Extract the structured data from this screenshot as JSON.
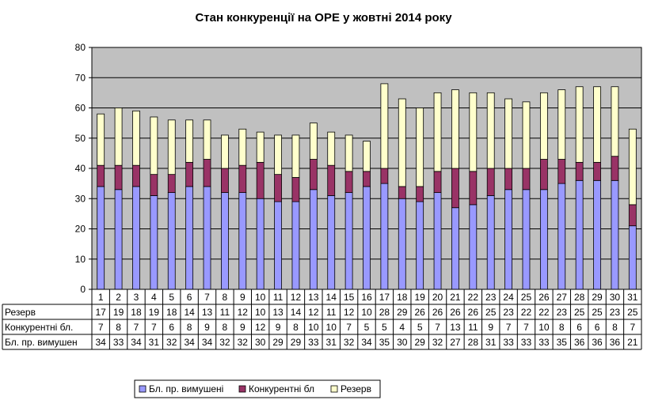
{
  "chart_data": {
    "type": "bar",
    "stacked": true,
    "title": "Стан конкуренції на ОРЕ  у жовтні 2014 року",
    "categories": [
      "1",
      "2",
      "3",
      "4",
      "5",
      "6",
      "7",
      "8",
      "9",
      "10",
      "11",
      "12",
      "13",
      "14",
      "15",
      "16",
      "17",
      "18",
      "19",
      "20",
      "21",
      "22",
      "23",
      "24",
      "25",
      "26",
      "27",
      "28",
      "29",
      "30",
      "31"
    ],
    "ylim": [
      0,
      80
    ],
    "yticks": [
      0,
      10,
      20,
      30,
      40,
      50,
      60,
      70,
      80
    ],
    "grid": true,
    "legend_position": "bottom",
    "series": [
      {
        "name": "Бл. пр. вимушені",
        "row_label": "Бл. пр. вимушен",
        "legend_label": "Бл. пр. вимушені",
        "color": "#9999ff",
        "values": [
          34,
          33,
          34,
          31,
          32,
          34,
          34,
          32,
          32,
          30,
          29,
          29,
          33,
          31,
          32,
          34,
          35,
          30,
          29,
          32,
          27,
          28,
          31,
          33,
          33,
          33,
          35,
          36,
          36,
          36,
          21
        ]
      },
      {
        "name": "Конкурентні бл.",
        "row_label": "Конкурентні бл.",
        "legend_label": "Конкурентні бл",
        "color": "#993366",
        "values": [
          7,
          8,
          7,
          7,
          6,
          8,
          9,
          8,
          9,
          12,
          9,
          8,
          10,
          10,
          7,
          5,
          5,
          4,
          5,
          7,
          13,
          11,
          9,
          7,
          7,
          10,
          8,
          6,
          6,
          8,
          7
        ]
      },
      {
        "name": "Резерв",
        "row_label": "Резерв",
        "legend_label": "Резерв",
        "color": "#ffffcc",
        "values": [
          17,
          19,
          18,
          19,
          18,
          14,
          13,
          11,
          12,
          10,
          13,
          14,
          12,
          11,
          12,
          10,
          28,
          29,
          26,
          26,
          26,
          26,
          25,
          23,
          22,
          22,
          23,
          25,
          25,
          23,
          25
        ]
      }
    ]
  },
  "colors": {
    "plot_background": "#c0c0c0",
    "gridline": "#000000",
    "border": "#000000"
  }
}
